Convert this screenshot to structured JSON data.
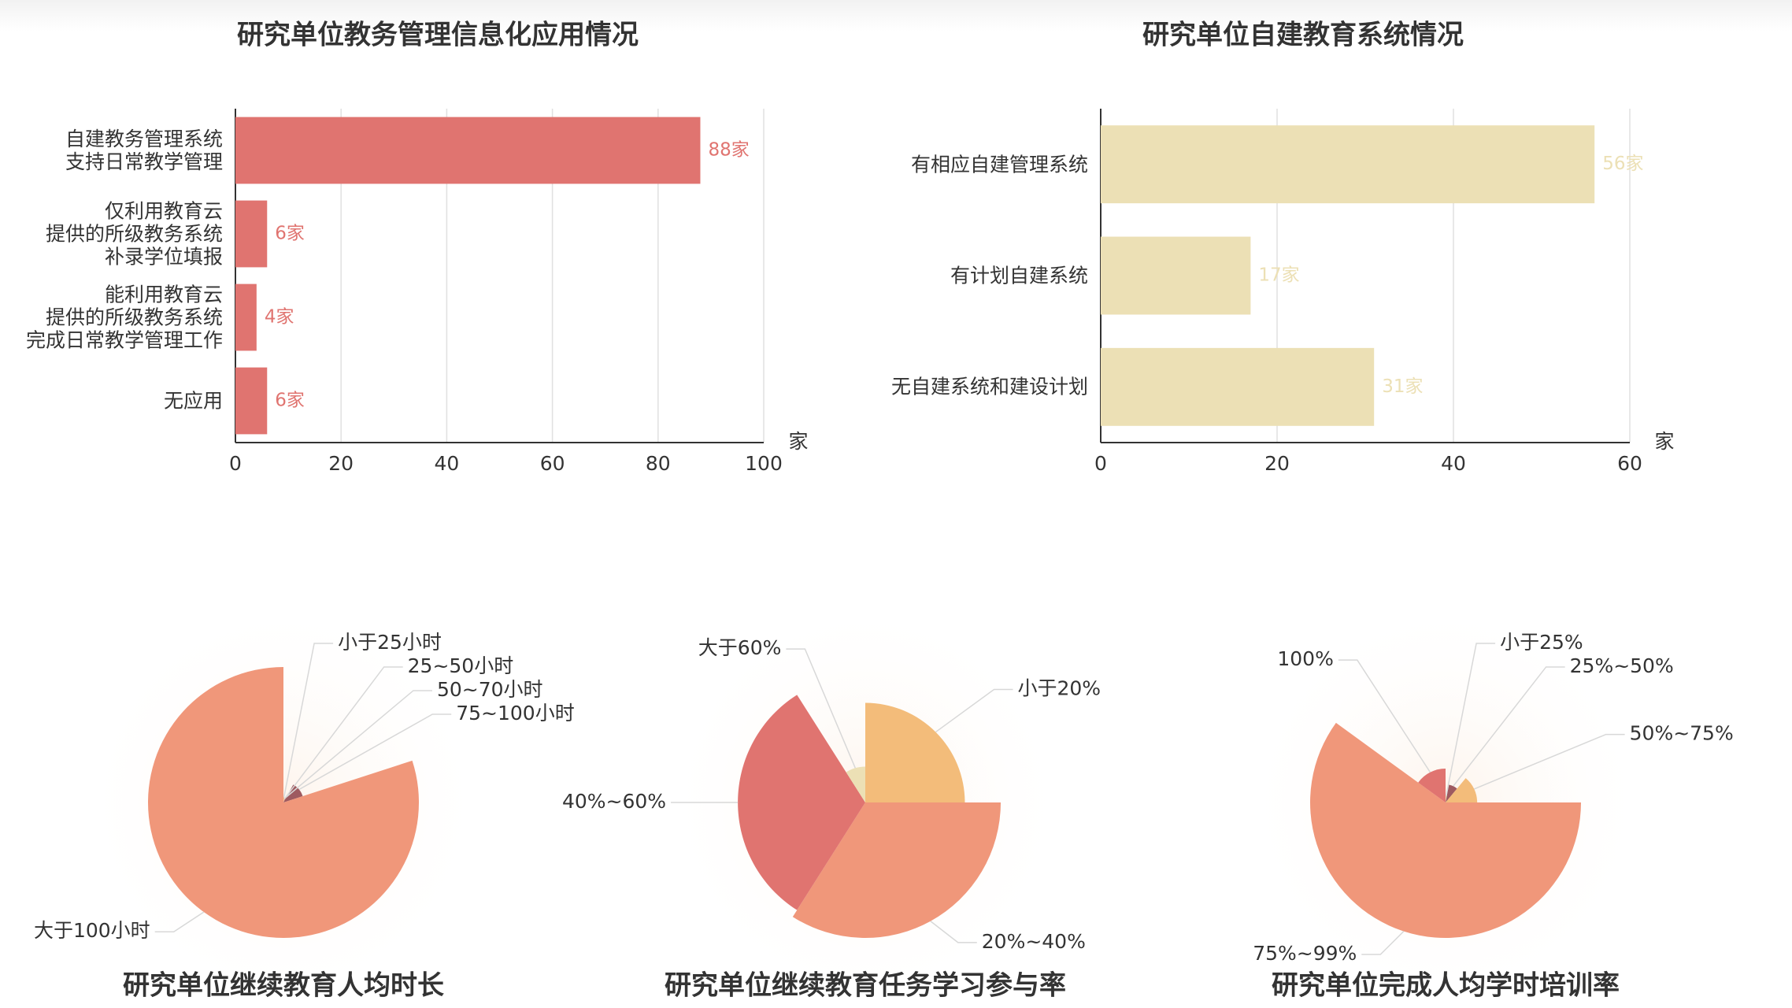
{
  "chart_data": [
    {
      "type": "bar",
      "orientation": "horizontal",
      "title": "研究单位教务管理信息化应用情况",
      "categories": [
        "自建教务管理系统\n支持日常教学管理",
        "仅利用教育云\n提供的所级教务系统\n补录学位填报",
        "能利用教育云\n提供的所级教务系统\n完成日常教学管理工作",
        "无应用"
      ],
      "values": [
        88,
        6,
        4,
        6
      ],
      "value_labels": [
        "88家",
        "6家",
        "4家",
        "6家"
      ],
      "color": "#e07470",
      "x_label": "家",
      "xlim": [
        0,
        100
      ],
      "xticks": [
        0,
        20,
        40,
        60,
        80,
        100
      ],
      "grid": true
    },
    {
      "type": "bar",
      "orientation": "horizontal",
      "title": "研究单位自建教育系统情况",
      "categories": [
        "有相应自建管理系统",
        "有计划自建系统",
        "无自建系统和建设计划"
      ],
      "values": [
        56,
        17,
        31
      ],
      "value_labels": [
        "56家",
        "17家",
        "31家"
      ],
      "color": "#ece0b5",
      "x_label": "家",
      "xlim": [
        0,
        60
      ],
      "xticks": [
        0,
        20,
        40,
        60
      ],
      "grid": true
    },
    {
      "type": "pie",
      "rose": "radius",
      "title": "研究单位继续教育人均时长",
      "categories": [
        "小于25小时",
        "25~50小时",
        "50~70小时",
        "75~100小时",
        "大于100小时"
      ],
      "values": [
        3,
        2,
        3,
        12,
        80
      ],
      "colors": [
        "#f3bc7a",
        "#ece0b5",
        "#e07470",
        "#9e5a60",
        "#f0977a"
      ]
    },
    {
      "type": "pie",
      "rose": "radius",
      "title": "研究单位继续教育任务学习参与率",
      "categories": [
        "小于20%",
        "20%~40%",
        "40%~60%",
        "大于60%"
      ],
      "values": [
        25,
        34,
        32,
        9
      ],
      "colors": [
        "#f3bc7a",
        "#f0977a",
        "#e07470",
        "#ece0b5"
      ]
    },
    {
      "type": "pie",
      "rose": "radius",
      "title": "研究单位完成人均学时培训率",
      "categories": [
        "小于25%",
        "25%~50%",
        "50%~75%",
        "75%~99%",
        "100%"
      ],
      "values": [
        3,
        8,
        14,
        60,
        15
      ],
      "colors": [
        "#ece0b5",
        "#9e5a60",
        "#f3bc7a",
        "#f0977a",
        "#e07470"
      ]
    }
  ]
}
